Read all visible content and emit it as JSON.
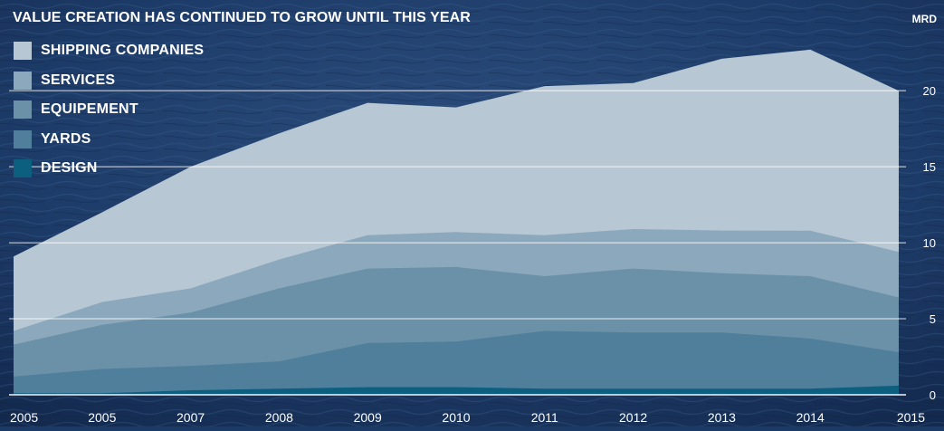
{
  "chart_data": {
    "type": "area",
    "stacked": true,
    "title": "VALUE CREATION HAS CONTINUED TO GROW UNTIL THIS YEAR",
    "unit": "MRD",
    "x": [
      "2005",
      "2005",
      "2007",
      "2008",
      "2009",
      "2010",
      "2011",
      "2012",
      "2013",
      "2014",
      "2015"
    ],
    "ylim": [
      0,
      24
    ],
    "yticks": [
      0,
      5,
      10,
      15,
      20
    ],
    "grid": true,
    "legend_position": "top-left",
    "series": [
      {
        "name": "DESIGN",
        "color": "#0d5f80",
        "values": [
          0.1,
          0.1,
          0.3,
          0.4,
          0.5,
          0.5,
          0.4,
          0.4,
          0.4,
          0.4,
          0.6
        ]
      },
      {
        "name": "YARDS",
        "color": "#4f7f9a",
        "values": [
          1.1,
          1.6,
          1.6,
          1.8,
          2.9,
          3.0,
          3.8,
          3.7,
          3.7,
          3.3,
          2.2
        ]
      },
      {
        "name": "EQUIPEMENT",
        "color": "#6a91a8",
        "values": [
          2.1,
          2.9,
          3.5,
          4.8,
          4.9,
          4.9,
          3.6,
          4.2,
          3.9,
          4.1,
          3.6
        ]
      },
      {
        "name": "SERVICES",
        "color": "#8ba8bc",
        "values": [
          0.9,
          1.5,
          1.6,
          1.9,
          2.2,
          2.3,
          2.7,
          2.6,
          2.8,
          3.0,
          3.0
        ]
      },
      {
        "name": "SHIPPING COMPANIES",
        "color": "#b7c7d4",
        "values": [
          4.9,
          5.9,
          8.0,
          8.3,
          8.7,
          8.2,
          9.8,
          9.6,
          11.3,
          11.9,
          10.6
        ]
      }
    ]
  }
}
